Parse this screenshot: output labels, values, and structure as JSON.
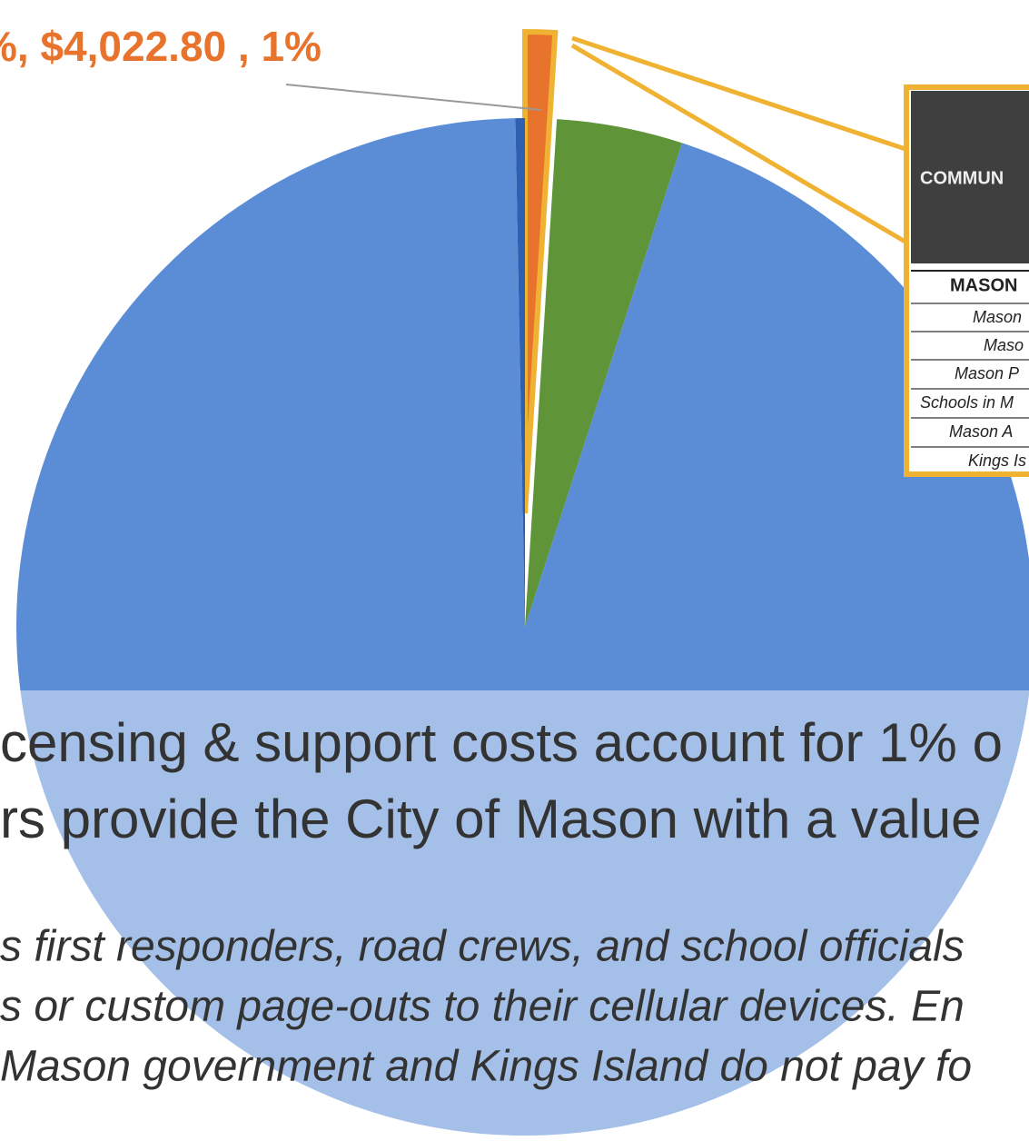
{
  "chart_data": {
    "type": "pie",
    "values": [
      1,
      4,
      94.7,
      0.3
    ],
    "colors": [
      "#e8732c",
      "#5f9438",
      "#5b8dd6",
      "#2f5fb0"
    ],
    "exploded": 0,
    "data_label": "%, $4,022.80 , 1%",
    "callout": {
      "header": "COMMUN",
      "rows": [
        "MASON",
        "Mason",
        "Maso",
        "Mason P",
        "Schools in M",
        "Mason A",
        "Kings Is"
      ]
    },
    "headline": [
      "censing & support costs account for 1% o",
      "rs provide the City of Mason with a value"
    ],
    "body": [
      "s first responders, road crews, and school officials",
      "s or custom page-outs to their cellular devices. En",
      "Mason government and Kings Island do not pay fo"
    ]
  }
}
